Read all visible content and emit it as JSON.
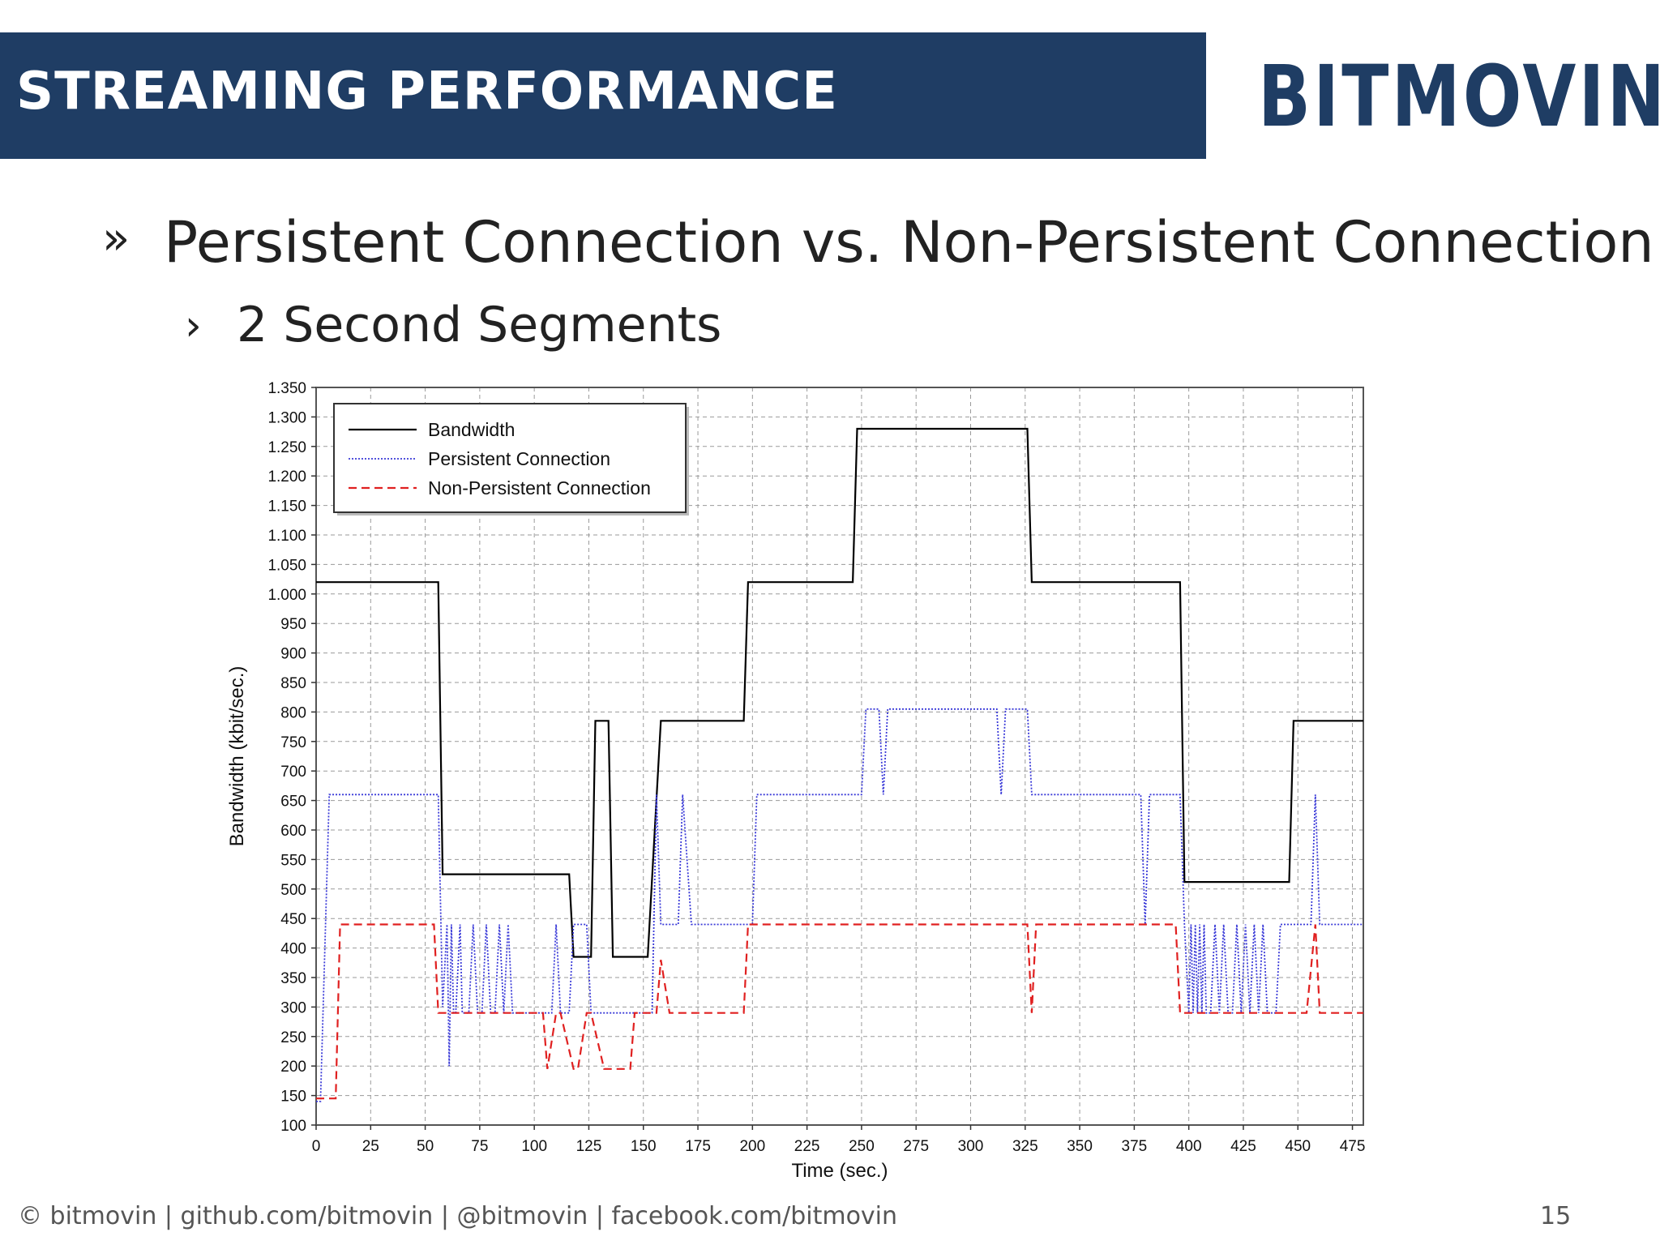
{
  "slide": {
    "title": "STREAMING PERFORMANCE",
    "logo": "BITMOVIN",
    "bullet1_marker": "»",
    "bullet1": "Persistent Connection vs. Non-Persistent Connection",
    "bullet2_marker": "›",
    "bullet2": "2 Second Segments",
    "footer": "© bitmovin | github.com/bitmovin | @bitmovin | facebook.com/bitmovin",
    "page_number": "15",
    "colors": {
      "title_bar": "#1f3d64",
      "logo": "#1f3d64"
    }
  },
  "chart_data": {
    "type": "line",
    "title": "",
    "xlabel": "Time (sec.)",
    "ylabel": "Bandwidth (kbit/sec.)",
    "xlim": [
      0,
      480
    ],
    "ylim": [
      100,
      1350
    ],
    "xticks": [
      0,
      25,
      50,
      75,
      100,
      125,
      150,
      175,
      200,
      225,
      250,
      275,
      300,
      325,
      350,
      375,
      400,
      425,
      450,
      475
    ],
    "yticks": [
      100,
      150,
      200,
      250,
      300,
      350,
      400,
      450,
      500,
      550,
      600,
      650,
      700,
      750,
      800,
      850,
      900,
      950,
      1000,
      1050,
      1100,
      1150,
      1200,
      1250,
      1300,
      1350
    ],
    "ytick_labels": [
      "100",
      "150",
      "200",
      "250",
      "300",
      "350",
      "400",
      "450",
      "500",
      "550",
      "600",
      "650",
      "700",
      "750",
      "800",
      "850",
      "900",
      "950",
      "1.000",
      "1.050",
      "1.100",
      "1.150",
      "1.200",
      "1.250",
      "1.300",
      "1.350"
    ],
    "grid": true,
    "legend_position": "top-left",
    "series": [
      {
        "name": "Bandwidth",
        "color": "#000000",
        "style": "solid",
        "x": [
          0,
          56,
          58,
          116,
          118,
          126,
          128,
          134,
          136,
          152,
          158,
          196,
          198,
          246,
          248,
          326,
          328,
          396,
          398,
          446,
          448,
          480
        ],
        "y": [
          1020,
          1020,
          525,
          525,
          385,
          385,
          785,
          785,
          385,
          385,
          785,
          785,
          1020,
          1020,
          1280,
          1280,
          1020,
          1020,
          512,
          512,
          785,
          785
        ]
      },
      {
        "name": "Persistent Connection",
        "color": "#3a3ad8",
        "style": "dotted",
        "x": [
          0,
          2,
          6,
          56,
          58,
          60,
          61,
          62,
          63,
          64,
          66,
          67,
          68,
          70,
          72,
          74,
          76,
          78,
          80,
          82,
          84,
          86,
          88,
          90,
          92,
          94,
          96,
          98,
          100,
          108,
          110,
          112,
          114,
          116,
          118,
          124,
          126,
          128,
          130,
          132,
          134,
          136,
          138,
          150,
          152,
          154,
          156,
          158,
          160,
          162,
          166,
          168,
          172,
          174,
          176,
          200,
          202,
          250,
          252,
          258,
          260,
          262,
          310,
          312,
          314,
          316,
          326,
          328,
          378,
          380,
          382,
          396,
          398,
          400,
          401,
          402,
          403,
          404,
          405,
          406,
          407,
          408,
          410,
          412,
          414,
          416,
          418,
          420,
          422,
          424,
          426,
          428,
          430,
          432,
          434,
          436,
          438,
          440,
          442,
          448,
          450,
          456,
          458,
          460,
          462,
          480
        ],
        "y": [
          140,
          140,
          660,
          660,
          300,
          440,
          200,
          440,
          290,
          290,
          440,
          290,
          290,
          290,
          440,
          290,
          290,
          440,
          290,
          290,
          440,
          290,
          440,
          290,
          290,
          290,
          290,
          290,
          290,
          290,
          440,
          290,
          290,
          290,
          440,
          440,
          290,
          290,
          290,
          290,
          290,
          290,
          290,
          290,
          290,
          290,
          660,
          440,
          440,
          440,
          440,
          660,
          440,
          440,
          440,
          440,
          660,
          660,
          805,
          805,
          660,
          805,
          805,
          805,
          660,
          805,
          805,
          660,
          660,
          440,
          660,
          660,
          440,
          290,
          440,
          290,
          440,
          290,
          440,
          290,
          440,
          290,
          290,
          440,
          290,
          440,
          290,
          290,
          440,
          290,
          440,
          290,
          440,
          290,
          440,
          290,
          290,
          290,
          440,
          440,
          440,
          440,
          660,
          440,
          440,
          440
        ]
      },
      {
        "name": "Non-Persistent Connection",
        "color": "#e02020",
        "style": "dashed",
        "x": [
          0,
          9,
          11,
          54,
          56,
          104,
          106,
          110,
          112,
          118,
          120,
          124,
          126,
          132,
          134,
          144,
          146,
          156,
          158,
          162,
          164,
          196,
          198,
          326,
          328,
          330,
          332,
          394,
          396,
          400,
          402,
          452,
          454,
          458,
          460,
          480
        ],
        "y": [
          145,
          145,
          440,
          440,
          290,
          290,
          195,
          290,
          290,
          195,
          195,
          290,
          290,
          195,
          195,
          195,
          290,
          290,
          380,
          290,
          290,
          290,
          440,
          440,
          290,
          440,
          440,
          440,
          290,
          290,
          290,
          290,
          290,
          440,
          290,
          290
        ]
      }
    ]
  }
}
